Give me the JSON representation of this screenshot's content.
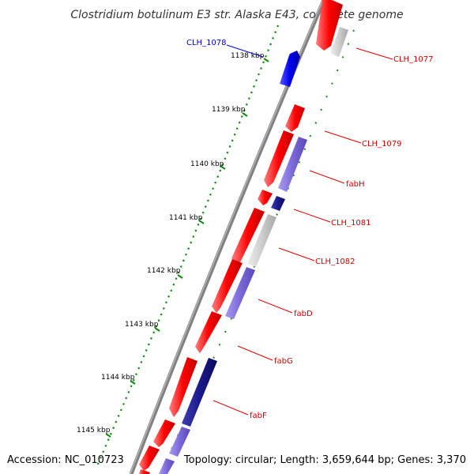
{
  "title": "Clostridium botulinum E3 str. Alaska E43, complete genome",
  "accession": "Accession: NC_010723",
  "topology": "Topology: circular; Length: 3,659,644 bp; Genes: 3,370",
  "colors": {
    "forward_cds": "#ff0000",
    "reverse_cds": "#0000dd",
    "highlight_label": "#0000cc",
    "gene_label": "#cc0000",
    "tick": "#118811",
    "backbone": "#808080",
    "cog_light": "#cccccc",
    "cog_purple": "#7b68d9",
    "cog_navy": "#1a1a8c"
  },
  "ticks": [
    {
      "label": "1138 kbp"
    },
    {
      "label": "1139 kbp"
    },
    {
      "label": "1140 kbp"
    },
    {
      "label": "1141 kbp"
    },
    {
      "label": "1142 kbp"
    },
    {
      "label": "1143 kbp"
    },
    {
      "label": "1144 kbp"
    },
    {
      "label": "1145 kbp"
    }
  ],
  "gene_labels": [
    {
      "name": "CLH_1078",
      "color": "#0000cc"
    },
    {
      "name": "CLH_1077",
      "color": "#cc0000"
    },
    {
      "name": "CLH_1079",
      "color": "#cc0000"
    },
    {
      "name": "fabH",
      "color": "#cc0000"
    },
    {
      "name": "CLH_1081",
      "color": "#cc0000"
    },
    {
      "name": "CLH_1082",
      "color": "#cc0000"
    },
    {
      "name": "fabD",
      "color": "#cc0000"
    },
    {
      "name": "fabG",
      "color": "#cc0000"
    },
    {
      "name": "fabF",
      "color": "#cc0000"
    }
  ]
}
